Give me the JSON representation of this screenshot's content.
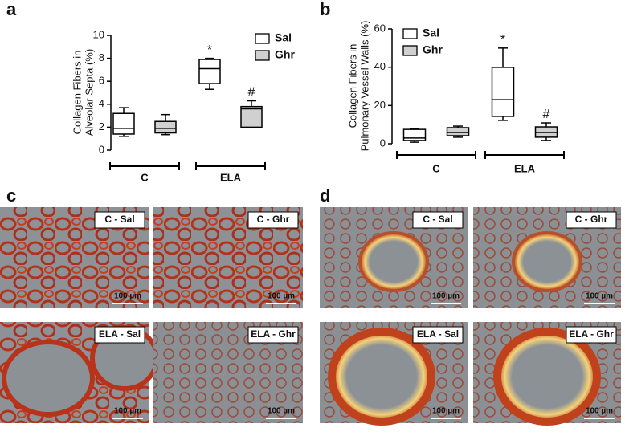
{
  "chart_data": [
    {
      "type": "box",
      "panel": "a",
      "ylabel": [
        "Collagen Fibers in",
        "Alveolar Septa (%)"
      ],
      "categories": [
        "C",
        "ELA"
      ],
      "ylim": [
        0,
        10
      ],
      "yticks": [
        0,
        2,
        4,
        6,
        8,
        10
      ],
      "series": [
        {
          "name": "Sal",
          "color": "#ffffff",
          "min": [
            1.2,
            5.3
          ],
          "q1": [
            1.4,
            5.8
          ],
          "median": [
            1.9,
            7.1
          ],
          "q3": [
            3.2,
            7.9
          ],
          "max": [
            3.7,
            8.0
          ],
          "annotations": [
            null,
            "*"
          ]
        },
        {
          "name": "Ghr",
          "color": "#d0d0d0",
          "min": [
            1.35,
            2.0
          ],
          "q1": [
            1.5,
            2.0
          ],
          "median": [
            1.9,
            3.6
          ],
          "q3": [
            2.5,
            3.8
          ],
          "max": [
            3.1,
            4.3
          ],
          "annotations": [
            null,
            "#"
          ]
        }
      ]
    },
    {
      "type": "box",
      "panel": "b",
      "ylabel": [
        "Collagen Fibers in",
        "Pulmonary Vessel Walls (%)"
      ],
      "categories": [
        "C",
        "ELA"
      ],
      "ylim": [
        0,
        60
      ],
      "yticks": [
        0,
        20,
        40,
        60
      ],
      "series": [
        {
          "name": "Sal",
          "color": "#ffffff",
          "min": [
            0.8,
            12.2
          ],
          "q1": [
            1.7,
            14.3
          ],
          "median": [
            3,
            23
          ],
          "q3": [
            7.5,
            39.9
          ],
          "max": [
            8,
            50
          ],
          "annotations": [
            null,
            "*"
          ]
        },
        {
          "name": "Ghr",
          "color": "#d0d0d0",
          "min": [
            3.4,
            1.7
          ],
          "q1": [
            4.2,
            3.4
          ],
          "median": [
            5.9,
            5.9
          ],
          "q3": [
            8.4,
            8.8
          ],
          "max": [
            9.2,
            10.9
          ],
          "annotations": [
            null,
            "#"
          ]
        }
      ]
    }
  ],
  "micrographs": [
    {
      "panel": "c",
      "images": [
        {
          "label": "C - Sal",
          "scale": "100 µm"
        },
        {
          "label": "C - Ghr",
          "scale": "100 µm"
        },
        {
          "label": "ELA - Sal",
          "scale": "100 µm"
        },
        {
          "label": "ELA - Ghr",
          "scale": "100 µm"
        }
      ]
    },
    {
      "panel": "d",
      "images": [
        {
          "label": "C - Sal",
          "scale": "100 µm"
        },
        {
          "label": "C - Ghr",
          "scale": "100 µm"
        },
        {
          "label": "ELA - Sal",
          "scale": "100 µm"
        },
        {
          "label": "ELA - Ghr",
          "scale": "100 µm"
        }
      ]
    }
  ]
}
